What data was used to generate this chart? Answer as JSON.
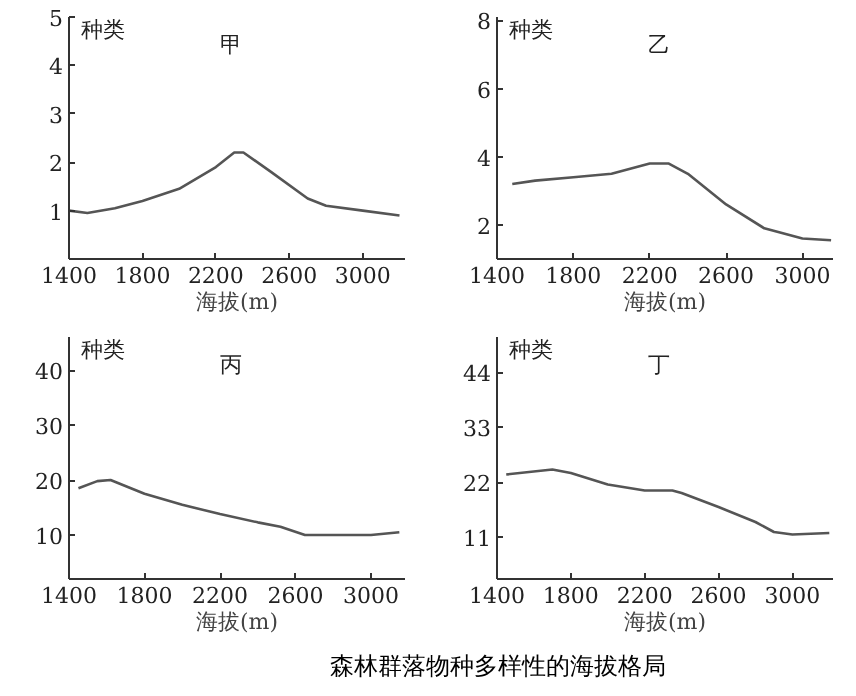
{
  "chart_data": [
    {
      "type": "line",
      "title": "甲",
      "ylabel": "种类",
      "xlabel": "海拔(m)",
      "xlim": [
        1400,
        3230
      ],
      "ylim": [
        0,
        5
      ],
      "xticks": [
        1400,
        1800,
        2200,
        2600,
        3000
      ],
      "yticks": [
        1,
        2,
        3,
        4,
        5
      ],
      "grid": false,
      "marker": "none",
      "line_style": "solid",
      "x": [
        1400,
        1500,
        1650,
        1800,
        2000,
        2200,
        2300,
        2350,
        2500,
        2700,
        2800,
        3000,
        3200
      ],
      "series": [
        {
          "color": "#555555",
          "values": [
            1.0,
            0.95,
            1.05,
            1.2,
            1.45,
            1.9,
            2.2,
            2.2,
            1.8,
            1.25,
            1.1,
            1.0,
            0.9
          ]
        }
      ]
    },
    {
      "type": "line",
      "title": "乙",
      "ylabel": "种类",
      "xlabel": "海拔(m)",
      "xlim": [
        1400,
        3160
      ],
      "ylim": [
        1,
        8.1
      ],
      "xticks": [
        1400,
        1800,
        2200,
        2600,
        3000
      ],
      "yticks": [
        2,
        4,
        6,
        8
      ],
      "grid": false,
      "marker": "none",
      "line_style": "solid",
      "x": [
        1480,
        1600,
        1800,
        2000,
        2200,
        2300,
        2400,
        2600,
        2800,
        3000,
        3150
      ],
      "series": [
        {
          "color": "#555555",
          "values": [
            3.2,
            3.3,
            3.4,
            3.5,
            3.8,
            3.8,
            3.5,
            2.6,
            1.9,
            1.6,
            1.55
          ]
        }
      ]
    },
    {
      "type": "line",
      "title": "丙",
      "ylabel": "种类",
      "xlabel": "海拔(m)",
      "xlim": [
        1400,
        3180
      ],
      "ylim": [
        2,
        46
      ],
      "xticks": [
        1400,
        1800,
        2200,
        2600,
        3000
      ],
      "yticks": [
        10,
        20,
        30,
        40
      ],
      "grid": false,
      "marker": "none",
      "line_style": "solid",
      "x": [
        1450,
        1550,
        1620,
        1800,
        2000,
        2200,
        2400,
        2520,
        2650,
        2800,
        3000,
        3150
      ],
      "series": [
        {
          "color": "#555555",
          "values": [
            18.5,
            19.8,
            20,
            17.5,
            15.5,
            13.8,
            12.3,
            11.5,
            10,
            10,
            10,
            10.5
          ]
        }
      ]
    },
    {
      "type": "line",
      "title": "丁",
      "ylabel": "种类",
      "xlabel": "海拔(m)",
      "xlim": [
        1400,
        3220
      ],
      "ylim": [
        2.6,
        51
      ],
      "xticks": [
        1400,
        1800,
        2200,
        2600,
        3000
      ],
      "yticks": [
        11,
        22,
        33,
        44
      ],
      "grid": false,
      "marker": "none",
      "line_style": "solid",
      "x": [
        1450,
        1700,
        1800,
        2000,
        2200,
        2350,
        2400,
        2600,
        2800,
        2900,
        3000,
        3200
      ],
      "series": [
        {
          "color": "#555555",
          "values": [
            23.5,
            24.5,
            23.8,
            21.5,
            20.3,
            20.3,
            19.8,
            17,
            14,
            12,
            11.5,
            11.8
          ]
        }
      ],
      "annotations": [
        "森林群落物种多样性的海拔格局"
      ]
    }
  ]
}
